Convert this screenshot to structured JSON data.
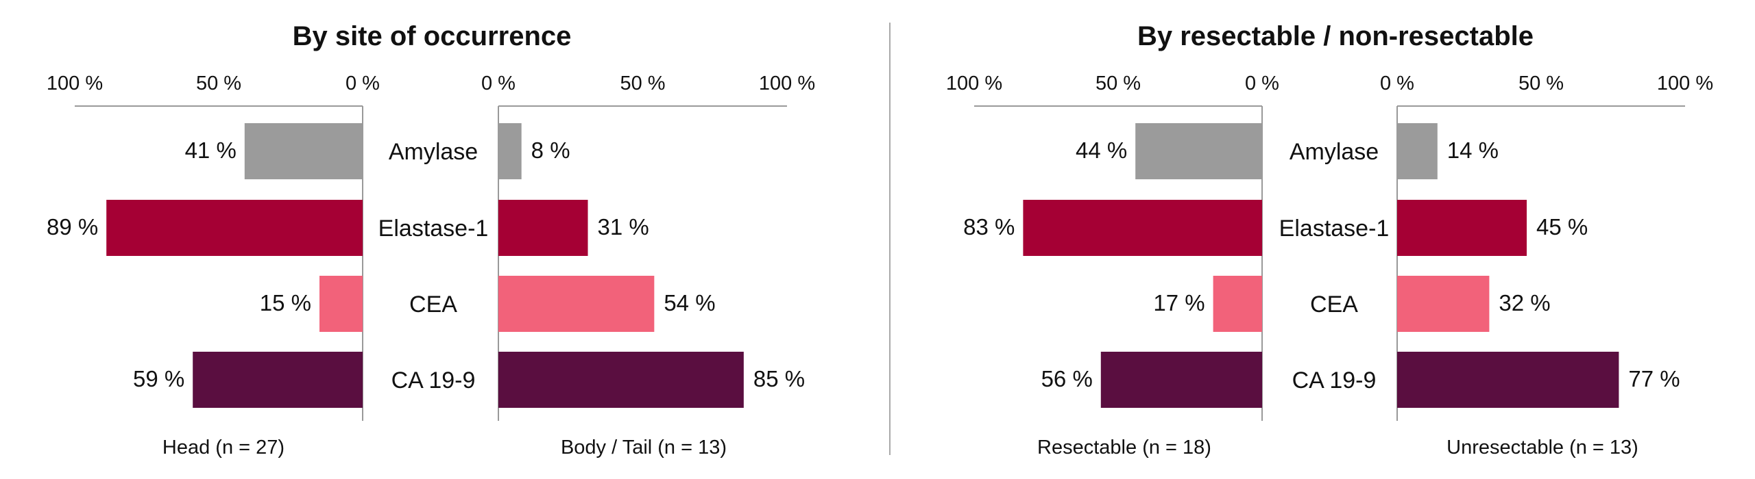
{
  "chart_data": [
    {
      "type": "bar",
      "orientation": "horizontal",
      "layout": "butterfly",
      "title": "By site of occurrence",
      "categories": [
        "Amylase",
        "Elastase-1",
        "CEA",
        "CA 19-9"
      ],
      "category_colors": [
        "#9b9b9b",
        "#a50034",
        "#f2627a",
        "#5a0e40"
      ],
      "unit": "%",
      "xlim": [
        0,
        100
      ],
      "ticks_left": [
        "100 %",
        "50 %",
        "0 %"
      ],
      "ticks_right": [
        "0 %",
        "50 %",
        "100 %"
      ],
      "series": [
        {
          "name": "Head (n = 27)",
          "side": "left",
          "values": [
            41,
            89,
            15,
            59
          ]
        },
        {
          "name": "Body / Tail (n = 13)",
          "side": "right",
          "values": [
            8,
            31,
            54,
            85
          ]
        }
      ],
      "grid": false
    },
    {
      "type": "bar",
      "orientation": "horizontal",
      "layout": "butterfly",
      "title": "By resectable / non-resectable",
      "categories": [
        "Amylase",
        "Elastase-1",
        "CEA",
        "CA 19-9"
      ],
      "category_colors": [
        "#9b9b9b",
        "#a50034",
        "#f2627a",
        "#5a0e40"
      ],
      "unit": "%",
      "xlim": [
        0,
        100
      ],
      "ticks_left": [
        "100 %",
        "50 %",
        "0 %"
      ],
      "ticks_right": [
        "0 %",
        "50 %",
        "100 %"
      ],
      "series": [
        {
          "name": "Resectable (n = 18)",
          "side": "left",
          "values": [
            44,
            83,
            17,
            56
          ]
        },
        {
          "name": "Unresectable (n = 13)",
          "side": "right",
          "values": [
            14,
            45,
            32,
            77
          ]
        }
      ],
      "grid": false
    }
  ]
}
